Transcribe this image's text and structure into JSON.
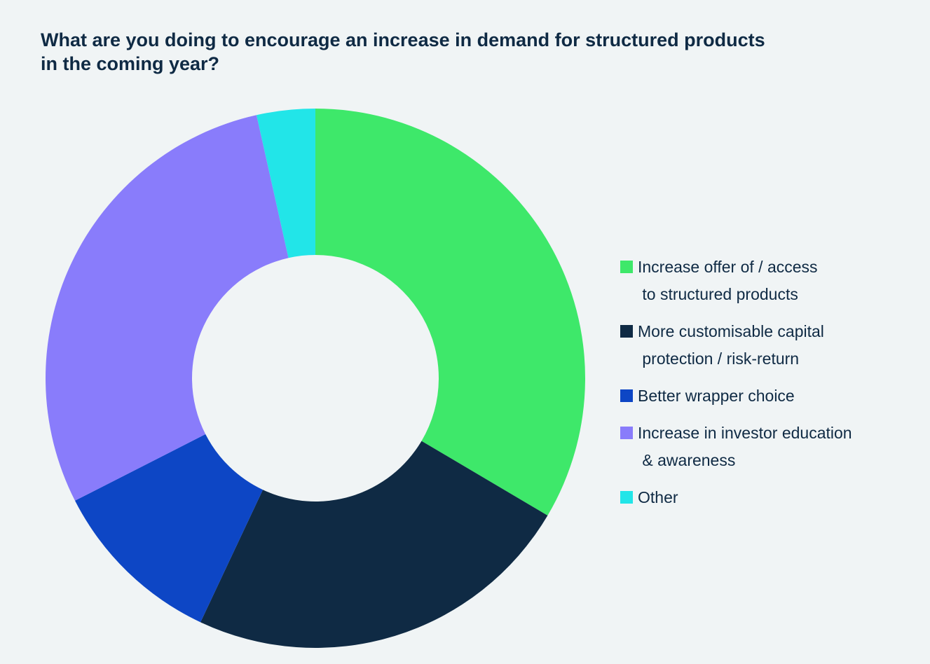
{
  "chart_data": {
    "type": "pie",
    "variant": "donut",
    "title": "What are you doing to encourage an increase in demand for structured products in the coming year?",
    "title_lines": [
      "What are you doing to encourage an increase in demand for structured products",
      "in the coming year?"
    ],
    "slices": [
      {
        "label": "Increase offer of / access to structured products",
        "legend_lines": [
          "Increase offer of / access",
          " to structured products"
        ],
        "value": 33.5,
        "color": "#3ee86a"
      },
      {
        "label": "More customisable capital protection / risk-return",
        "legend_lines": [
          "More customisable capital",
          " protection / risk-return"
        ],
        "value": 23.5,
        "color": "#0f2a44"
      },
      {
        "label": "Better wrapper choice",
        "legend_lines": [
          "Better wrapper choice"
        ],
        "value": 10.5,
        "color": "#0d46c5"
      },
      {
        "label": "Increase in investor education & awareness",
        "legend_lines": [
          "Increase in investor education",
          " & awareness"
        ],
        "value": 29.0,
        "color": "#897cfb"
      },
      {
        "label": "Other",
        "legend_lines": [
          "Other"
        ],
        "value": 3.5,
        "color": "#22e5e8"
      }
    ],
    "start_angle_deg": 0,
    "direction": "clockwise",
    "legend_position": "right"
  }
}
